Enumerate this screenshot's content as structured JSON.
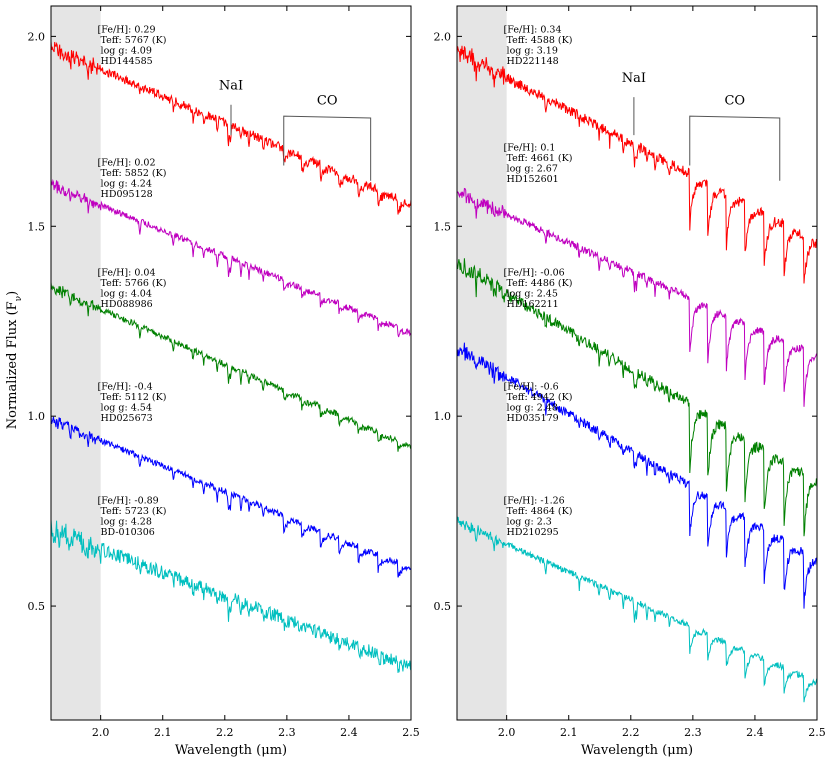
{
  "figure": {
    "ylabel": "Normalized Flux (Fν)",
    "ylabel_main": "Normalized Flux (F",
    "ylabel_sub": "ν",
    "ylabel_close": ")"
  },
  "chart_data": [
    {
      "type": "line",
      "xlabel": "Wavelength (μm)",
      "ylabel": "Normalized Flux (Fν)",
      "xlim": [
        1.92,
        2.5
      ],
      "ylim": [
        0.2,
        2.08
      ],
      "xticks": [
        2.0,
        2.1,
        2.2,
        2.3,
        2.4,
        2.5
      ],
      "xtick_labels": [
        "2.0",
        "2.1",
        "2.2",
        "2.3",
        "2.4",
        "2.5"
      ],
      "yticks": [
        0.5,
        1.0,
        1.5,
        2.0
      ],
      "ytick_labels": [
        "0.5",
        "1.0",
        "1.5",
        "2.0"
      ],
      "shaded_region": [
        1.92,
        2.0
      ],
      "features": [
        {
          "label": "NaI",
          "kind": "line",
          "x": 2.21,
          "y_from": 1.74,
          "y_to": 1.82,
          "text_y": 1.86
        },
        {
          "label": "CO",
          "kind": "bracket",
          "x_start": 2.295,
          "x_end": 2.435,
          "y_top": 1.79,
          "y_left": 1.66,
          "y_right": 1.62,
          "text_y": 1.82
        }
      ],
      "series": [
        {
          "name": "HD144585",
          "color": "#ff0000",
          "feh": "[Fe/H]: 0.29",
          "teff": "Teff: 5767 (K)",
          "logg": "log g: 4.09",
          "star": "HD144585",
          "start": 1.97,
          "end": 1.56,
          "noise": 0.012,
          "co_depth": 0.05,
          "label_y": 2.01
        },
        {
          "name": "HD095128",
          "color": "#bf00bf",
          "feh": "[Fe/H]: 0.02",
          "teff": "Teff: 5852 (K)",
          "logg": "log g: 4.24",
          "star": "HD095128",
          "start": 1.61,
          "end": 1.22,
          "noise": 0.008,
          "co_depth": 0.03,
          "label_y": 1.66
        },
        {
          "name": "HD088986",
          "color": "#008000",
          "feh": "[Fe/H]: 0.04",
          "teff": "Teff: 5766 (K)",
          "logg": "log g: 4.04",
          "star": "HD088986",
          "start": 1.34,
          "end": 0.92,
          "noise": 0.008,
          "co_depth": 0.03,
          "label_y": 1.37
        },
        {
          "name": "HD025673",
          "color": "#0000ff",
          "feh": "[Fe/H]: -0.4",
          "teff": "Teff: 5112 (K)",
          "logg": "log g: 4.54",
          "star": "HD025673",
          "start": 0.99,
          "end": 0.6,
          "noise": 0.008,
          "co_depth": 0.05,
          "label_y": 1.07
        },
        {
          "name": "BD-010306",
          "color": "#00bfbf",
          "feh": "[Fe/H]: -0.89",
          "teff": "Teff: 5723 (K)",
          "logg": "log g: 4.28",
          "star": "BD-010306",
          "start": 0.7,
          "end": 0.34,
          "noise": 0.018,
          "co_depth": 0.02,
          "label_y": 0.77
        }
      ]
    },
    {
      "type": "line",
      "xlabel": "Wavelength (μm)",
      "ylabel": "",
      "xlim": [
        1.92,
        2.5
      ],
      "ylim": [
        0.2,
        2.08
      ],
      "xticks": [
        2.0,
        2.1,
        2.2,
        2.3,
        2.4,
        2.5
      ],
      "xtick_labels": [
        "2.0",
        "2.1",
        "2.2",
        "2.3",
        "2.4",
        "2.5"
      ],
      "yticks": [
        0.5,
        1.0,
        1.5,
        2.0
      ],
      "ytick_labels": [
        "0.5",
        "1.0",
        "1.5",
        "2.0"
      ],
      "shaded_region": [
        1.92,
        2.0
      ],
      "features": [
        {
          "label": "NaI",
          "kind": "line",
          "x": 2.205,
          "y_from": 1.74,
          "y_to": 1.84,
          "text_y": 1.88
        },
        {
          "label": "CO",
          "kind": "bracket",
          "x_start": 2.295,
          "x_end": 2.44,
          "y_top": 1.79,
          "y_left": 1.66,
          "y_right": 1.62,
          "text_y": 1.82
        }
      ],
      "series": [
        {
          "name": "HD221148",
          "color": "#ff0000",
          "feh": "[Fe/H]: 0.34",
          "teff": "Teff: 4588 (K)",
          "logg": "log g: 3.19",
          "star": "HD221148",
          "start": 1.96,
          "end": 1.46,
          "noise": 0.014,
          "co_depth": 0.16,
          "label_y": 2.01
        },
        {
          "name": "HD152601",
          "color": "#bf00bf",
          "feh": "[Fe/H]: 0.1",
          "teff": "Teff: 4661 (K)",
          "logg": "log g: 2.67",
          "star": "HD152601",
          "start": 1.59,
          "end": 1.16,
          "noise": 0.01,
          "co_depth": 0.17,
          "label_y": 1.7
        },
        {
          "name": "HD162211",
          "color": "#008000",
          "feh": "[Fe/H]: -0.06",
          "teff": "Teff: 4486 (K)",
          "logg": "log g: 2.45",
          "star": "HD162211",
          "start": 1.4,
          "end": 0.83,
          "noise": 0.014,
          "co_depth": 0.2,
          "label_y": 1.37
        },
        {
          "name": "HD035179",
          "color": "#0000ff",
          "feh": "[Fe/H]: -0.6",
          "teff": "Teff: 4942 (K)",
          "logg": "log g: 2.48",
          "star": "HD035179",
          "start": 1.18,
          "end": 0.62,
          "noise": 0.012,
          "co_depth": 0.16,
          "label_y": 1.07
        },
        {
          "name": "HD210295",
          "color": "#00bfbf",
          "feh": "[Fe/H]: -1.26",
          "teff": "Teff: 4864 (K)",
          "logg": "log g: 2.3",
          "star": "HD210295",
          "start": 0.72,
          "end": 0.3,
          "noise": 0.008,
          "co_depth": 0.08,
          "label_y": 0.77
        }
      ]
    }
  ]
}
